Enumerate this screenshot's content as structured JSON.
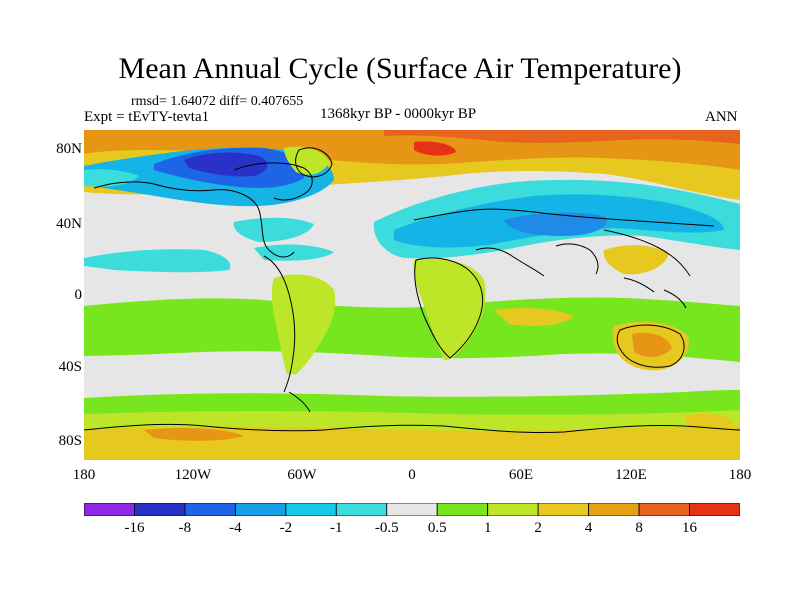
{
  "title": "Mean Annual Cycle (Surface Air Temperature)",
  "stats": "rmsd= 1.64072 diff= 0.407655",
  "experiment": "Expt = tEvTY-tevta1",
  "period": "1368kyr BP - 0000kyr BP",
  "season": "ANN",
  "map": {
    "lat_labels": [
      "80N",
      "40N",
      "0",
      "40S",
      "80S"
    ],
    "lon_labels": [
      "180",
      "120W",
      "60W",
      "0",
      "60E",
      "120E",
      "180"
    ],
    "colors": {
      "ocean_neutral": "#e6e6e6",
      "green": "#78e61e",
      "yellowgreen": "#bee628",
      "yellow": "#e6c81e",
      "orange": "#e69614",
      "darkorange": "#e6641e",
      "red": "#e63214",
      "cyan": "#3cdcdc",
      "lightblue": "#14b4e6",
      "blue": "#1e8ce6",
      "darkblue": "#1e32c8",
      "purple": "#8c28e6",
      "coastline": "#000000"
    }
  },
  "colorbar": {
    "colors": [
      "#8c28e6",
      "#2832c8",
      "#1e64e6",
      "#14a0e6",
      "#14c8e6",
      "#3cdcdc",
      "#e6e6e6",
      "#78e61e",
      "#bee628",
      "#e6c81e",
      "#e6a014",
      "#e6641e",
      "#e63214"
    ],
    "labels": [
      "-16",
      "-8",
      "-4",
      "-2",
      "-1",
      "-0.5",
      "0.5",
      "1",
      "2",
      "4",
      "8",
      "16"
    ]
  }
}
